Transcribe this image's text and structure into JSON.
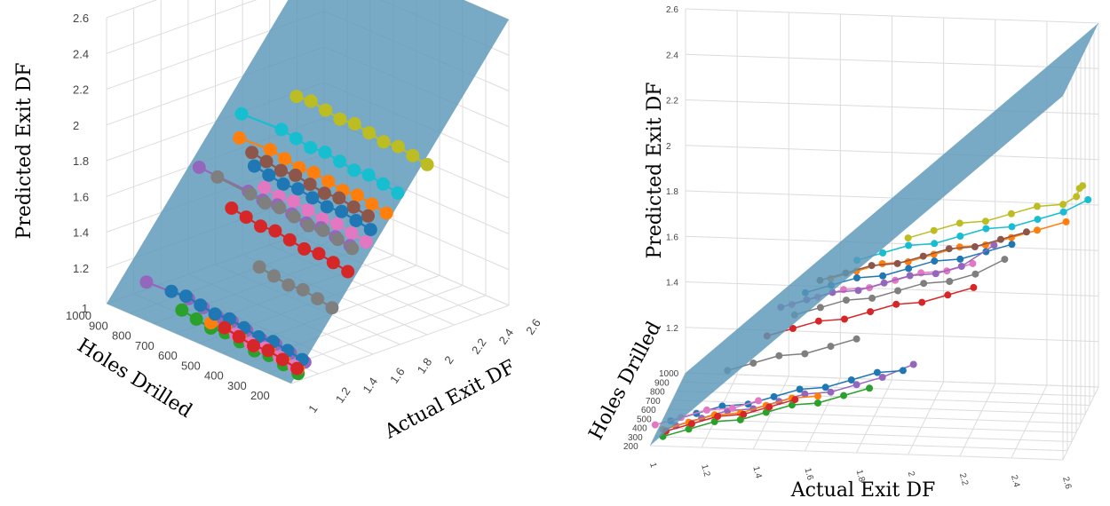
{
  "chart_data": [
    {
      "type": "scatter3d",
      "view": "oblique",
      "zlabel": "Predicted Exit DF",
      "ylabel": "Holes Drilled",
      "xlabel": "Actual Exit DF",
      "z_ticks": [
        "1",
        "1.2",
        "1.4",
        "1.6",
        "1.8",
        "2",
        "2.2",
        "2.4",
        "2.6"
      ],
      "y_ticks": [
        "1000",
        "900",
        "800",
        "700",
        "600",
        "500",
        "400",
        "300",
        "200"
      ],
      "x_ticks": [
        "1",
        "1.2",
        "1.4",
        "1.6",
        "1.8",
        "2",
        "2.2",
        "2.4",
        "2.6"
      ],
      "surface": "fitted plane Predicted = Actual",
      "series": [
        {
          "name": "olive",
          "color": "#bcbd22",
          "actual": 2.0,
          "predicted": 1.96,
          "holes": [
            1000,
            930,
            860,
            790,
            720,
            650,
            580,
            510,
            440,
            370
          ]
        },
        {
          "name": "cyan",
          "color": "#17becf",
          "actual": 1.8,
          "predicted": 1.85,
          "holes": [
            990,
            920,
            850,
            780,
            710,
            640,
            570,
            500,
            430,
            250
          ]
        },
        {
          "name": "orange",
          "color": "#ff7f0e",
          "actual": 1.7,
          "predicted": 1.77,
          "holes": [
            1000,
            930,
            860,
            790,
            720,
            650,
            580,
            510,
            440,
            300
          ]
        },
        {
          "name": "brown",
          "color": "#8c564b",
          "actual": 1.65,
          "predicted": 1.74,
          "holes": [
            950,
            880,
            810,
            740,
            670,
            600,
            530,
            460,
            390
          ]
        },
        {
          "name": "blue",
          "color": "#1f77b4",
          "actual": 1.6,
          "predicted": 1.7,
          "holes": [
            990,
            920,
            850,
            780,
            710,
            640,
            570,
            500,
            430
          ]
        },
        {
          "name": "pink",
          "color": "#e377c2",
          "actual": 1.55,
          "predicted": 1.65,
          "holes": [
            1000,
            930,
            860,
            790,
            720,
            650,
            580,
            510
          ]
        },
        {
          "name": "purple",
          "color": "#9467bd",
          "actual": 1.5,
          "predicted": 1.62,
          "holes": [
            960,
            890,
            820,
            750,
            680,
            610,
            540,
            470,
            250
          ]
        },
        {
          "name": "gray",
          "color": "#7f7f7f",
          "actual": 1.55,
          "predicted": 1.58,
          "holes": [
            940,
            870,
            800,
            730,
            660,
            590,
            520,
            450,
            300
          ]
        },
        {
          "name": "red",
          "color": "#d62728",
          "actual": 1.45,
          "predicted": 1.5,
          "holes": [
            980,
            910,
            840,
            770,
            700,
            630,
            560,
            490,
            420
          ]
        },
        {
          "name": "gray-2",
          "color": "#7f7f7f",
          "actual": 1.3,
          "predicted": 1.35,
          "holes": [
            1000,
            930,
            860,
            790,
            720,
            650
          ]
        },
        {
          "name": "green",
          "color": "#2ca02c",
          "actual": 1.05,
          "predicted": 1.05,
          "holes": [
            1000,
            930,
            860,
            790,
            720,
            650,
            580,
            510,
            440
          ]
        },
        {
          "name": "purple-2",
          "color": "#9467bd",
          "actual": 1.1,
          "predicted": 1.1,
          "holes": [
            1000,
            930,
            860,
            790,
            720,
            650,
            580,
            510,
            440,
            250
          ]
        },
        {
          "name": "orange-2",
          "color": "#ff7f0e",
          "actual": 1.05,
          "predicted": 1.08,
          "holes": [
            1000,
            930,
            860,
            790,
            720,
            650,
            580
          ]
        },
        {
          "name": "blue-2",
          "color": "#1f77b4",
          "actual": 1.08,
          "predicted": 1.12,
          "holes": [
            1000,
            930,
            860,
            790,
            720,
            650,
            580,
            510,
            440,
            370
          ]
        },
        {
          "name": "pink-2",
          "color": "#e377c2",
          "actual": 1.02,
          "predicted": 1.1,
          "holes": [
            1000,
            930,
            860,
            790,
            720
          ]
        },
        {
          "name": "red-2",
          "color": "#d62728",
          "actual": 1.06,
          "predicted": 1.07,
          "holes": [
            990,
            920,
            850,
            780,
            710,
            640
          ]
        }
      ]
    },
    {
      "type": "scatter3d",
      "view": "front",
      "zlabel": "Predicted Exit DF",
      "ylabel": "Holes Drilled",
      "xlabel": "Actual Exit DF",
      "z_ticks": [
        "1",
        "1.2",
        "1.4",
        "1.6",
        "1.8",
        "2",
        "2.2",
        "2.4",
        "2.6"
      ],
      "y_ticks": [
        "1000",
        "900",
        "800",
        "700",
        "600",
        "500",
        "400",
        "300",
        "200"
      ],
      "x_ticks": [
        "1",
        "1.2",
        "1.4",
        "1.6",
        "1.8",
        "2",
        "2.2",
        "2.4",
        "2.6"
      ],
      "surface": "fitted plane Predicted = Actual"
    }
  ]
}
